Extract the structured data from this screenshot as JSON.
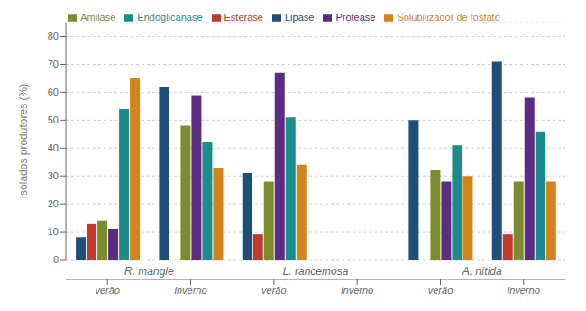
{
  "chart_data": {
    "type": "bar",
    "y_label": "Isolados produtores (%)",
    "categories": [
      "verão",
      "inverno",
      "verão",
      "inverno",
      "verão",
      "inverno"
    ],
    "annotations": [
      "R. mangle",
      "L. rancemosa",
      "A. nítida"
    ],
    "series": [
      {
        "name": "Lipase",
        "color": "#1F4E79",
        "values": [
          8,
          62,
          31,
          0,
          50,
          71
        ]
      },
      {
        "name": "Esterase",
        "color": "#C0392B",
        "values": [
          13,
          0,
          9,
          0,
          0,
          9
        ]
      },
      {
        "name": "Amilase",
        "color": "#7D8C2A",
        "values": [
          14,
          48,
          28,
          0,
          32,
          28
        ]
      },
      {
        "name": "Protease",
        "color": "#5B2C82",
        "values": [
          11,
          59,
          67,
          0,
          28,
          58
        ]
      },
      {
        "name": "Endoglicanase",
        "color": "#1A8C8C",
        "values": [
          54,
          42,
          51,
          0,
          41,
          46
        ]
      },
      {
        "name": "Solubilizador de fosfato",
        "color": "#D4821A",
        "values": [
          65,
          33,
          34,
          0,
          30,
          28
        ]
      }
    ],
    "ylim": [
      0,
      85
    ],
    "yticks": [
      0,
      10,
      20,
      30,
      40,
      50,
      60,
      70,
      80
    ],
    "grid": true,
    "legend": "top"
  }
}
